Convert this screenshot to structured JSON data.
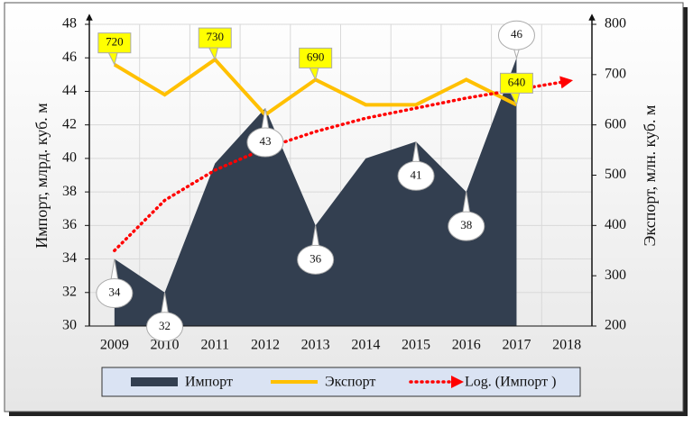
{
  "chart_data": {
    "type": "area_line",
    "categories": [
      "2009",
      "2010",
      "2011",
      "2012",
      "2013",
      "2014",
      "2015",
      "2016",
      "2017",
      "2018"
    ],
    "series": [
      {
        "name": "Импорт",
        "color": "#333f50",
        "kind": "area",
        "axis": "y",
        "values": [
          34,
          32,
          39.7,
          43,
          36,
          40,
          41,
          38,
          46,
          null
        ],
        "value_labels": [
          "34",
          "32",
          null,
          "43",
          "36",
          null,
          "41",
          "38",
          "46",
          null
        ]
      },
      {
        "name": "Экспорт",
        "color": "#ffc000",
        "kind": "line",
        "axis": "y2",
        "values": [
          720,
          660,
          730,
          620,
          690,
          640,
          640,
          690,
          640,
          null
        ],
        "value_labels": [
          "720",
          null,
          "730",
          null,
          "690",
          null,
          null,
          null,
          "640",
          null
        ]
      },
      {
        "name": "Log. (Импорт )",
        "color": "#ff0000",
        "kind": "trend",
        "axis": "y",
        "values": [
          34.5,
          37.5,
          39.3,
          40.6,
          41.6,
          42.4,
          43.0,
          43.6,
          44.1,
          44.6
        ]
      }
    ],
    "ylabel": "Импорт, млрд. куб. м",
    "y2label": "Экспорт, млн. куб. м",
    "ylim": [
      30,
      48
    ],
    "yticks": [
      30,
      32,
      34,
      36,
      38,
      40,
      42,
      44,
      46,
      48
    ],
    "y2lim": [
      200,
      800
    ],
    "y2ticks": [
      200,
      300,
      400,
      500,
      600,
      700,
      800
    ],
    "grid": true,
    "legend": "bottom"
  }
}
